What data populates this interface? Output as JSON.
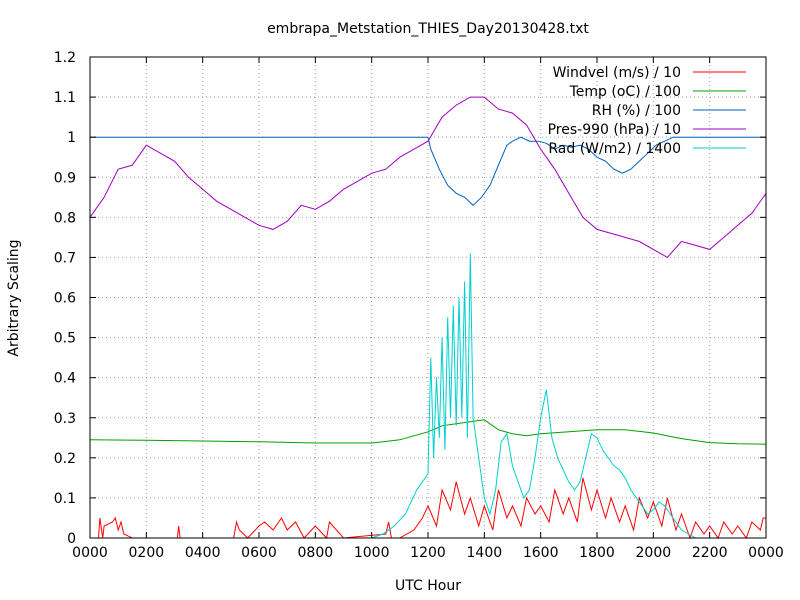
{
  "chart_data": {
    "type": "line",
    "title": "embrapa_Metstation_THIES_Day20130428.txt",
    "xlabel": "UTC Hour",
    "ylabel": "Arbitrary Scaling",
    "xlim": [
      0,
      24
    ],
    "ylim": [
      0,
      1.2
    ],
    "grid": true,
    "legend_position": "top-right",
    "x_tick_labels": [
      "0000",
      "0200",
      "0400",
      "0600",
      "0800",
      "1000",
      "1200",
      "1400",
      "1600",
      "1800",
      "2000",
      "2200",
      "0000"
    ],
    "y_tick_labels": [
      "0",
      "0.1",
      "0.2",
      "0.3",
      "0.4",
      "0.5",
      "0.6",
      "0.7",
      "0.8",
      "0.9",
      "1",
      "1.1",
      "1.2"
    ],
    "series": [
      {
        "name": "Windvel (m/s) / 10",
        "color": "#ff0000",
        "x": [
          0,
          0.3,
          0.35,
          0.45,
          0.5,
          0.8,
          0.9,
          1.0,
          1.1,
          1.2,
          1.5,
          2.5,
          3.1,
          3.15,
          3.2,
          5.1,
          5.2,
          5.3,
          5.6,
          6.0,
          6.2,
          6.5,
          6.8,
          7.0,
          7.3,
          7.6,
          8.0,
          8.4,
          8.5,
          9.0,
          10.5,
          10.6,
          10.7,
          11.0,
          11.5,
          11.8,
          12.0,
          12.3,
          12.5,
          12.8,
          13.0,
          13.3,
          13.5,
          13.8,
          14.0,
          14.3,
          14.5,
          14.8,
          15.0,
          15.3,
          15.5,
          15.8,
          16.0,
          16.3,
          16.5,
          16.8,
          17.0,
          17.3,
          17.5,
          17.8,
          18.0,
          18.3,
          18.5,
          18.8,
          19.0,
          19.3,
          19.5,
          19.8,
          20.0,
          20.3,
          20.5,
          20.8,
          21.0,
          21.3,
          21.5,
          21.8,
          22.0,
          22.3,
          22.5,
          22.8,
          23.0,
          23.3,
          23.5,
          23.8,
          23.9,
          24.0
        ],
        "values": [
          0,
          0,
          0.05,
          0,
          0.03,
          0.04,
          0.05,
          0.02,
          0.04,
          0.01,
          0,
          0,
          0,
          0.03,
          0,
          0,
          0.04,
          0.02,
          0,
          0.03,
          0.04,
          0.02,
          0.05,
          0.02,
          0.04,
          0,
          0.03,
          0,
          0.04,
          0,
          0.01,
          0.04,
          0,
          0,
          0.02,
          0.05,
          0.08,
          0.03,
          0.12,
          0.07,
          0.14,
          0.06,
          0.1,
          0.03,
          0.08,
          0.02,
          0.12,
          0.05,
          0.08,
          0.03,
          0.1,
          0.06,
          0.08,
          0.04,
          0.12,
          0.06,
          0.1,
          0.04,
          0.15,
          0.07,
          0.12,
          0.05,
          0.1,
          0.04,
          0.08,
          0.02,
          0.1,
          0.05,
          0.09,
          0.03,
          0.1,
          0.02,
          0.06,
          0,
          0.04,
          0.01,
          0.03,
          0,
          0.04,
          0.01,
          0.03,
          0,
          0.04,
          0.02,
          0.05,
          0.05
        ]
      },
      {
        "name": "Temp (oC) / 100",
        "color": "#00a000",
        "x": [
          0,
          2,
          4,
          6,
          8,
          10,
          11,
          12,
          12.5,
          13,
          13.5,
          14,
          14.5,
          15,
          15.5,
          16,
          17,
          18,
          19,
          20,
          21,
          22,
          23,
          24
        ],
        "values": [
          0.245,
          0.244,
          0.242,
          0.24,
          0.237,
          0.237,
          0.245,
          0.265,
          0.28,
          0.285,
          0.29,
          0.295,
          0.27,
          0.26,
          0.255,
          0.26,
          0.265,
          0.27,
          0.27,
          0.262,
          0.248,
          0.238,
          0.235,
          0.234
        ]
      },
      {
        "name": "RH (%) / 100",
        "color": "#0060c0",
        "x": [
          0,
          12,
          12.1,
          12.4,
          12.7,
          13.0,
          13.3,
          13.6,
          13.9,
          14.2,
          14.5,
          14.8,
          15.0,
          15.3,
          15.6,
          15.9,
          16.2,
          16.5,
          16.8,
          17.1,
          17.4,
          17.7,
          18.0,
          18.3,
          18.6,
          18.9,
          19.2,
          19.5,
          19.8,
          20.1,
          20.4,
          20.7,
          21.0,
          22,
          24
        ],
        "values": [
          1,
          1,
          0.97,
          0.92,
          0.88,
          0.86,
          0.85,
          0.83,
          0.85,
          0.88,
          0.93,
          0.98,
          0.99,
          1.0,
          0.99,
          0.99,
          0.985,
          0.97,
          0.98,
          0.975,
          0.98,
          0.97,
          0.95,
          0.94,
          0.92,
          0.91,
          0.92,
          0.94,
          0.96,
          0.98,
          0.99,
          1.0,
          1.0,
          1.0,
          1.0
        ]
      },
      {
        "name": "Pres-990 (hPa) / 10",
        "color": "#a000c0",
        "x": [
          0,
          0.5,
          1.0,
          1.5,
          2.0,
          2.5,
          3.0,
          3.5,
          4.0,
          4.5,
          5.0,
          5.5,
          6.0,
          6.5,
          7.0,
          7.5,
          8.0,
          8.5,
          9.0,
          9.5,
          10.0,
          10.5,
          11.0,
          11.5,
          12.0,
          12.5,
          13.0,
          13.5,
          14.0,
          14.5,
          15.0,
          15.5,
          16.0,
          16.5,
          17.0,
          17.5,
          18.0,
          18.5,
          19.0,
          19.5,
          20.0,
          20.5,
          21.0,
          21.5,
          22.0,
          22.5,
          23.0,
          23.5,
          24.0
        ],
        "values": [
          0.8,
          0.85,
          0.92,
          0.93,
          0.98,
          0.96,
          0.94,
          0.9,
          0.87,
          0.84,
          0.82,
          0.8,
          0.78,
          0.77,
          0.79,
          0.83,
          0.82,
          0.84,
          0.87,
          0.89,
          0.91,
          0.92,
          0.95,
          0.97,
          0.99,
          1.05,
          1.08,
          1.1,
          1.1,
          1.07,
          1.06,
          1.03,
          0.97,
          0.92,
          0.86,
          0.8,
          0.77,
          0.76,
          0.75,
          0.74,
          0.72,
          0.7,
          0.74,
          0.73,
          0.72,
          0.75,
          0.78,
          0.81,
          0.86
        ]
      },
      {
        "name": "Rad (W/m2) / 1400",
        "color": "#00d0d0",
        "x": [
          0,
          10.0,
          10.4,
          10.8,
          11.2,
          11.6,
          12.0,
          12.1,
          12.2,
          12.3,
          12.4,
          12.5,
          12.6,
          12.7,
          12.8,
          12.9,
          13.0,
          13.1,
          13.2,
          13.3,
          13.4,
          13.5,
          13.6,
          13.8,
          14.0,
          14.2,
          14.4,
          14.6,
          14.8,
          15.0,
          15.2,
          15.4,
          15.6,
          15.8,
          16.0,
          16.2,
          16.4,
          16.6,
          16.8,
          17.0,
          17.2,
          17.4,
          17.6,
          17.8,
          18.0,
          18.2,
          18.4,
          18.6,
          18.8,
          19.0,
          19.2,
          19.4,
          19.6,
          19.8,
          20.0,
          20.2,
          20.4,
          20.6,
          20.8,
          21.0,
          21.5,
          24.0
        ],
        "values": [
          0,
          0,
          0.01,
          0.03,
          0.06,
          0.12,
          0.16,
          0.45,
          0.2,
          0.4,
          0.25,
          0.5,
          0.22,
          0.55,
          0.3,
          0.58,
          0.28,
          0.6,
          0.3,
          0.64,
          0.25,
          0.71,
          0.3,
          0.2,
          0.1,
          0.06,
          0.12,
          0.24,
          0.26,
          0.18,
          0.14,
          0.1,
          0.12,
          0.2,
          0.3,
          0.37,
          0.25,
          0.2,
          0.17,
          0.14,
          0.12,
          0.14,
          0.2,
          0.26,
          0.25,
          0.22,
          0.2,
          0.18,
          0.17,
          0.15,
          0.12,
          0.1,
          0.08,
          0.06,
          0.07,
          0.09,
          0.08,
          0.06,
          0.04,
          0.02,
          0,
          0
        ]
      }
    ]
  }
}
